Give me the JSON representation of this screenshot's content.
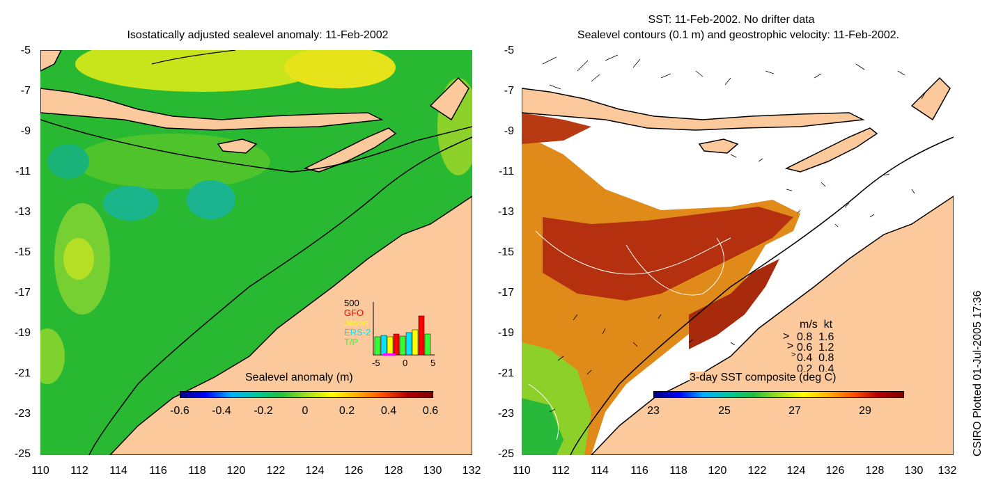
{
  "left_panel": {
    "title": "Isostatically adjusted sealevel anomaly: 11-Feb-2002",
    "colorbar_label": "Sealevel anomaly (m)",
    "colorbar_ticks": [
      "-0.6",
      "-0.4",
      "-0.2",
      "0",
      "0.2",
      "0.4",
      "0.6"
    ],
    "y_ticks": [
      "-5",
      "-7",
      "-9",
      "-11",
      "-13",
      "-15",
      "-17",
      "-19",
      "-21",
      "-23",
      "-25"
    ],
    "x_ticks": [
      "110",
      "112",
      "114",
      "116",
      "118",
      "120",
      "122",
      "124",
      "126",
      "128",
      "130",
      "132"
    ],
    "sea_color": "#22bb2a",
    "land_color": "#fbc99b",
    "inset": {
      "ymax_label": "500",
      "legend": [
        {
          "name": "GFO",
          "color": "#ff0000"
        },
        {
          "name": "Jason",
          "color": "#ffff00"
        },
        {
          "name": "ERS-2",
          "color": "#00e5ff"
        },
        {
          "name": "T/P",
          "color": "#33ff33"
        }
      ],
      "x_ticks": [
        "-5",
        "0",
        "5"
      ]
    }
  },
  "right_panel": {
    "title_line1": "SST: 11-Feb-2002. No drifter data",
    "title_line2": "Sealevel contours (0.1 m) and geostrophic velocity: 11-Feb-2002.",
    "colorbar_label": "3-day SST composite (deg C)",
    "colorbar_ticks": [
      "23",
      "25",
      "27",
      "29"
    ],
    "y_ticks": [
      "-5",
      "-7",
      "-9",
      "-11",
      "-13",
      "-15",
      "-17",
      "-19",
      "-21",
      "-23",
      "-25"
    ],
    "x_ticks": [
      "110",
      "112",
      "114",
      "116",
      "118",
      "120",
      "122",
      "124",
      "126",
      "128",
      "130",
      "132"
    ],
    "velocity_key": {
      "header": "m/s  kt",
      "rows": [
        "0.8  1.6",
        "0.6  1.2",
        "0.4  0.8",
        "0.2  0.4"
      ]
    }
  },
  "credit": "CSIRO Plotted 01-Jul-2005 17:36"
}
